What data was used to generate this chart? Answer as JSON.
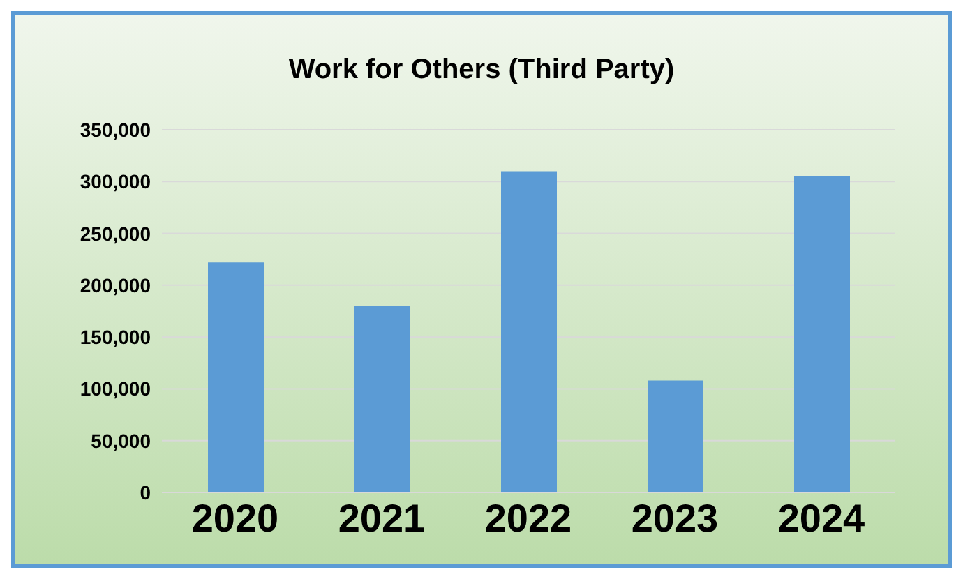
{
  "chart_data": {
    "type": "bar",
    "title": "Work for Others (Third Party)",
    "categories": [
      "2020",
      "2021",
      "2022",
      "2023",
      "2024"
    ],
    "values": [
      222000,
      180000,
      310000,
      108000,
      305000
    ],
    "color": "#5b9bd5",
    "ylim": [
      0,
      350000
    ],
    "yticks": [
      {
        "value": 0,
        "label": "0"
      },
      {
        "value": 50000,
        "label": "50,000"
      },
      {
        "value": 100000,
        "label": "100,000"
      },
      {
        "value": 150000,
        "label": "150,000"
      },
      {
        "value": 200000,
        "label": "200,000"
      },
      {
        "value": 250000,
        "label": "250,000"
      },
      {
        "value": 300000,
        "label": "300,000"
      },
      {
        "value": 350000,
        "label": "350,000"
      }
    ],
    "grid": "y"
  }
}
